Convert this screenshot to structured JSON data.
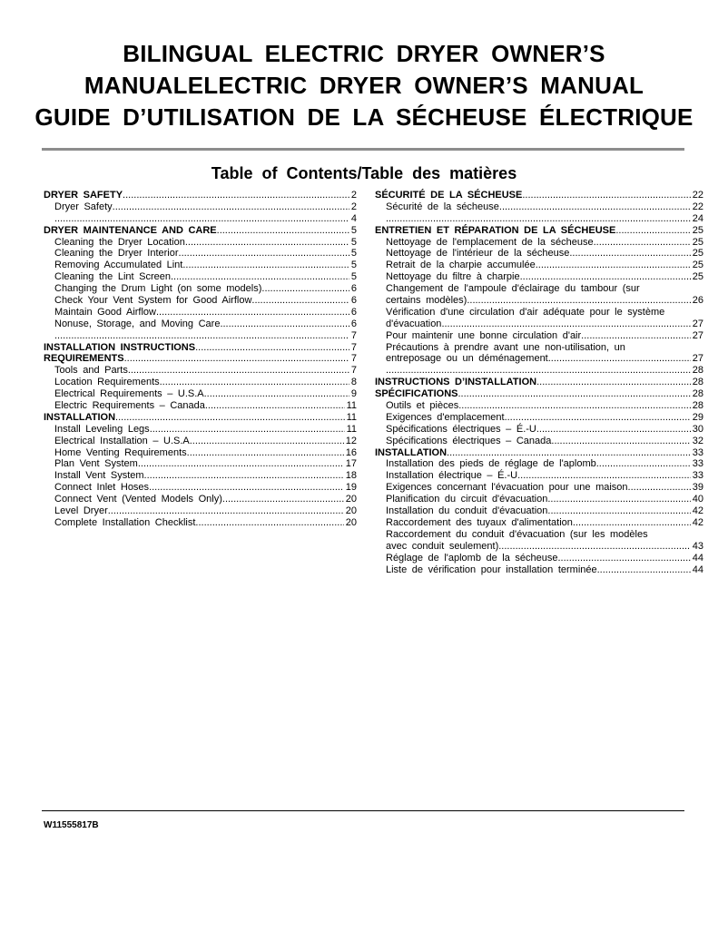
{
  "header": {
    "title_lines": [
      "BILINGUAL ELECTRIC DRYER OWNER’S",
      "MANUALELECTRIC DRYER OWNER’S MANUAL",
      "GUIDE D’UTILISATION DE LA SÉCHEUSE ÉLECTRIQUE"
    ],
    "toc_title": "Table of Contents/Table des matières"
  },
  "toc": {
    "left": [
      {
        "level": "head",
        "text": "DRYER SAFETY ",
        "page": "2"
      },
      {
        "level": "sub",
        "text": "Dryer Safety ",
        "page": "2"
      },
      {
        "level": "sub",
        "text": "",
        "page": "4"
      },
      {
        "level": "head",
        "text": "DRYER MAINTENANCE AND CARE ",
        "page": "5"
      },
      {
        "level": "sub",
        "text": "Cleaning the Dryer Location ",
        "page": "5"
      },
      {
        "level": "sub",
        "text": "Cleaning the Dryer Interior ",
        "page": "5"
      },
      {
        "level": "sub",
        "text": "Removing Accumulated Lint",
        "page": "5"
      },
      {
        "level": "sub",
        "text": "Cleaning the Lint Screen ",
        "page": "5"
      },
      {
        "level": "sub",
        "text": "Changing the Drum Light (on some models) ",
        "page": "6"
      },
      {
        "level": "sub",
        "text": "Check Your Vent System for Good Airflow ",
        "page": "6"
      },
      {
        "level": "sub",
        "text": "Maintain Good Airflow",
        "page": "6"
      },
      {
        "level": "sub",
        "text": "Nonuse, Storage, and Moving Care ",
        "page": "6"
      },
      {
        "level": "sub",
        "text": "",
        "page": "7"
      },
      {
        "level": "head",
        "text": "INSTALLATION INSTRUCTIONS ",
        "page": "7"
      },
      {
        "level": "head",
        "text": "REQUIREMENTS",
        "page": "7"
      },
      {
        "level": "sub",
        "text": "Tools and Parts ",
        "page": "7"
      },
      {
        "level": "sub",
        "text": "Location Requirements ",
        "page": "8"
      },
      {
        "level": "sub",
        "text": "Electrical Requirements – U.S.A",
        "page": "9"
      },
      {
        "level": "sub",
        "text": "Electric Requirements – Canada ",
        "page": " 11"
      },
      {
        "level": "head",
        "text": "INSTALLATION ",
        "page": " 11"
      },
      {
        "level": "sub",
        "text": "Install Leveling Legs ",
        "page": " 11"
      },
      {
        "level": "sub",
        "text": "Electrical Installation – U.S.A",
        "page": " 12"
      },
      {
        "level": "sub",
        "text": "Home Venting Requirements",
        "page": " 16"
      },
      {
        "level": "sub",
        "text": "Plan Vent System ",
        "page": " 17"
      },
      {
        "level": "sub",
        "text": "Install Vent System",
        "page": " 18"
      },
      {
        "level": "sub",
        "text": "Connect Inlet Hoses ",
        "page": " 19"
      },
      {
        "level": "sub",
        "text": "Connect Vent (Vented Models Only)",
        "page": " 20"
      },
      {
        "level": "sub",
        "text": "Level Dryer",
        "page": " 20"
      },
      {
        "level": "sub",
        "text": "Complete Installation Checklist ",
        "page": " 20"
      }
    ],
    "right": [
      {
        "level": "head",
        "text": "SÉCURITÉ DE LA SÉCHEUSE ",
        "page": " 22"
      },
      {
        "level": "sub",
        "text": "Sécurité de la sécheuse ",
        "page": " 22"
      },
      {
        "level": "sub",
        "text": "",
        "page": " 24"
      },
      {
        "level": "head",
        "text": "ENTRETIEN ET RÉPARATION DE LA SÉCHEUSE ",
        "page": " 25"
      },
      {
        "level": "sub",
        "text": "Nettoyage de l'emplacement de la sécheuse ",
        "page": " 25"
      },
      {
        "level": "sub",
        "text": "Nettoyage de l'intérieur de la sécheuse",
        "page": " 25"
      },
      {
        "level": "sub",
        "text": "Retrait de la charpie accumulée ",
        "page": " 25"
      },
      {
        "level": "sub",
        "text": "Nettoyage du filtre à charpie",
        "page": " 25"
      },
      {
        "level": "sub nodots",
        "text": "Changement de l'ampoule d'éclairage du tambour (sur",
        "page": ""
      },
      {
        "level": "sub",
        "text": "certains modèles) ",
        "page": " 26"
      },
      {
        "level": "sub nodots",
        "text": "Vérification d'une circulation d'air adéquate pour le système",
        "page": ""
      },
      {
        "level": "sub",
        "text": "d'évacuation ",
        "page": " 27"
      },
      {
        "level": "sub",
        "text": "Pour maintenir une bonne circulation d'air ",
        "page": " 27"
      },
      {
        "level": "sub nodots",
        "text": "Précautions à prendre avant une non-utilisation, un",
        "page": ""
      },
      {
        "level": "sub",
        "text": "entreposage ou un déménagement",
        "page": " 27"
      },
      {
        "level": "sub",
        "text": "",
        "page": " 28"
      },
      {
        "level": "head",
        "text": "INSTRUCTIONS D’INSTALLATION ",
        "page": " 28"
      },
      {
        "level": "head",
        "text": "SPÉCIFICATIONS ",
        "page": " 28"
      },
      {
        "level": "sub",
        "text": "Outils et pièces",
        "page": " 28"
      },
      {
        "level": "sub",
        "text": "Exigences d'emplacement ",
        "page": " 29"
      },
      {
        "level": "sub",
        "text": "Spécifications électriques – É.-U. ",
        "page": " 30"
      },
      {
        "level": "sub",
        "text": "Spécifications électriques – Canada",
        "page": " 32"
      },
      {
        "level": "head",
        "text": "INSTALLATION ",
        "page": " 33"
      },
      {
        "level": "sub",
        "text": "Installation des pieds de réglage de l'aplomb ",
        "page": " 33"
      },
      {
        "level": "sub",
        "text": "Installation électrique – É.-U. ",
        "page": " 33"
      },
      {
        "level": "sub",
        "text": "Exigences concernant l'évacuation pour une maison ",
        "page": " 39"
      },
      {
        "level": "sub",
        "text": "Planification du circuit d'évacuation",
        "page": " 40"
      },
      {
        "level": "sub",
        "text": "Installation du conduit d'évacuation",
        "page": " 42"
      },
      {
        "level": "sub",
        "text": "Raccordement des tuyaux d'alimentation ",
        "page": " 42"
      },
      {
        "level": "sub nodots",
        "text": "Raccordement du conduit d'évacuation (sur les modèles",
        "page": ""
      },
      {
        "level": "sub",
        "text": "avec conduit seulement)",
        "page": " 43"
      },
      {
        "level": "sub",
        "text": "Réglage de l'aplomb de la sécheuse ",
        "page": " 44"
      },
      {
        "level": "sub",
        "text": "Liste de vérification pour installation terminée ",
        "page": " 44"
      }
    ]
  },
  "footer": {
    "doc_code": "W11555817B"
  }
}
